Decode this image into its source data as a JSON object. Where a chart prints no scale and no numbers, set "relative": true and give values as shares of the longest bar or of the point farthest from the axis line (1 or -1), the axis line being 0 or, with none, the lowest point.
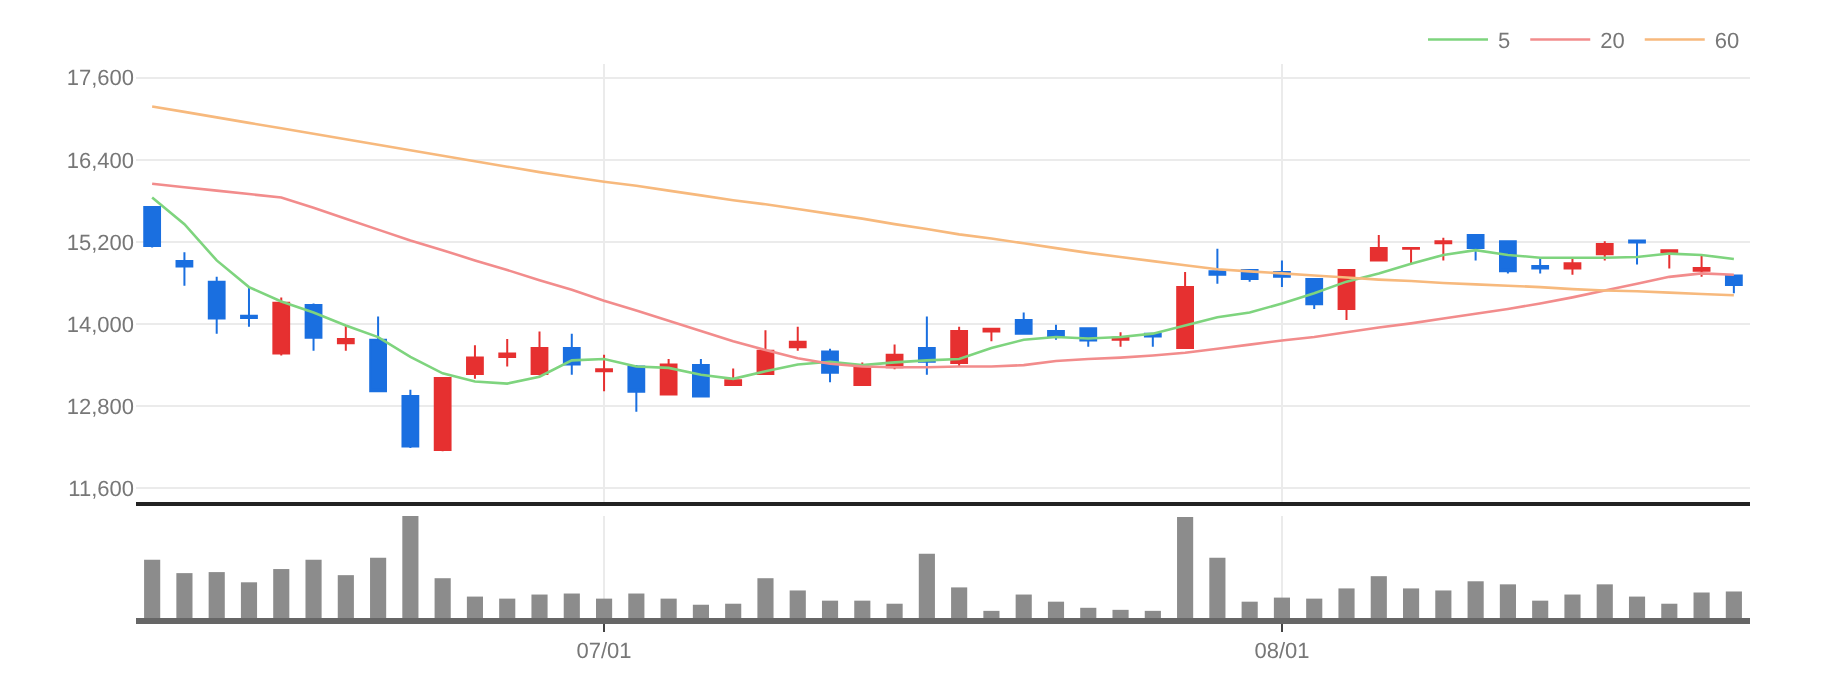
{
  "chart_data": [
    {
      "type": "candlestick",
      "categories": [
        null,
        null,
        null,
        null,
        null,
        null,
        null,
        null,
        null,
        null,
        null,
        null,
        null,
        null,
        null,
        null,
        null,
        null,
        null,
        null,
        null,
        null,
        null,
        null,
        null,
        null,
        null,
        null,
        null,
        null,
        null,
        null,
        null,
        null,
        null,
        null,
        null,
        null,
        null,
        null,
        null,
        null,
        null,
        null,
        null,
        null,
        null,
        null,
        null,
        null
      ],
      "ohlc": [
        [
          15710,
          15710,
          15120,
          15140
        ],
        [
          14920,
          15050,
          14560,
          14840
        ],
        [
          14620,
          14690,
          13860,
          14080
        ],
        [
          14120,
          14540,
          13960,
          14090
        ],
        [
          13570,
          14390,
          13540,
          14310
        ],
        [
          14280,
          14300,
          13610,
          13800
        ],
        [
          13720,
          13980,
          13610,
          13780
        ],
        [
          13770,
          14110,
          13010,
          13020
        ],
        [
          12950,
          13040,
          12190,
          12210
        ],
        [
          12160,
          13210,
          12140,
          13210
        ],
        [
          13270,
          13690,
          13200,
          13510
        ],
        [
          13520,
          13780,
          13380,
          13570
        ],
        [
          13270,
          13890,
          13250,
          13650
        ],
        [
          13650,
          13860,
          13260,
          13410
        ],
        [
          13310,
          13550,
          13020,
          13340
        ],
        [
          13380,
          13400,
          12720,
          13010
        ],
        [
          12970,
          13490,
          12970,
          13410
        ],
        [
          13400,
          13490,
          12940,
          12940
        ],
        [
          13110,
          13350,
          13110,
          13180
        ],
        [
          13270,
          13910,
          13270,
          13610
        ],
        [
          13660,
          13960,
          13610,
          13740
        ],
        [
          13600,
          13640,
          13150,
          13290
        ],
        [
          13110,
          13440,
          13110,
          13360
        ],
        [
          13370,
          13700,
          13340,
          13550
        ],
        [
          13650,
          14110,
          13260,
          13450
        ],
        [
          13430,
          13960,
          13380,
          13900
        ],
        [
          13890,
          13930,
          13750,
          13930
        ],
        [
          14060,
          14170,
          13860,
          13860
        ],
        [
          13900,
          13990,
          13770,
          13820
        ],
        [
          13940,
          13940,
          13670,
          13760
        ],
        [
          13770,
          13880,
          13670,
          13800
        ],
        [
          13860,
          13860,
          13670,
          13820
        ],
        [
          13650,
          14760,
          13650,
          14540
        ],
        [
          14770,
          15100,
          14590,
          14720
        ],
        [
          14790,
          14790,
          14620,
          14660
        ],
        [
          14760,
          14930,
          14540,
          14690
        ],
        [
          14660,
          14660,
          14220,
          14290
        ],
        [
          14220,
          14790,
          14060,
          14790
        ],
        [
          14930,
          15300,
          14930,
          15110
        ],
        [
          15100,
          15110,
          14870,
          15110
        ],
        [
          15180,
          15260,
          14930,
          15210
        ],
        [
          15300,
          15300,
          14930,
          15110
        ],
        [
          15210,
          15210,
          14740,
          14770
        ],
        [
          14850,
          14970,
          14740,
          14810
        ],
        [
          14810,
          14970,
          14720,
          14890
        ],
        [
          15020,
          15210,
          14930,
          15170
        ],
        [
          15220,
          15220,
          14870,
          15190
        ],
        [
          15050,
          15080,
          14810,
          15080
        ],
        [
          14780,
          15000,
          14690,
          14820
        ],
        [
          14710,
          14710,
          14450,
          14570
        ]
      ],
      "colors": [
        "#1a6fe0",
        "#1a6fe0",
        "#1a6fe0",
        "#1a6fe0",
        "#e63030",
        "#1a6fe0",
        "#e63030",
        "#1a6fe0",
        "#1a6fe0",
        "#e63030",
        "#e63030",
        "#e63030",
        "#e63030",
        "#1a6fe0",
        "#e63030",
        "#1a6fe0",
        "#e63030",
        "#1a6fe0",
        "#e63030",
        "#e63030",
        "#e63030",
        "#1a6fe0",
        "#e63030",
        "#e63030",
        "#1a6fe0",
        "#e63030",
        "#e63030",
        "#1a6fe0",
        "#1a6fe0",
        "#1a6fe0",
        "#e63030",
        "#1a6fe0",
        "#e63030",
        "#1a6fe0",
        "#1a6fe0",
        "#1a6fe0",
        "#1a6fe0",
        "#e63030",
        "#e63030",
        "#e63030",
        "#e63030",
        "#1a6fe0",
        "#1a6fe0",
        "#1a6fe0",
        "#e63030",
        "#e63030",
        "#1a6fe0",
        "#e63030",
        "#e63030",
        "#1a6fe0"
      ],
      "series": [
        {
          "type": "line",
          "name": "5",
          "color": "#7ed47e",
          "values": [
            15850,
            15460,
            14930,
            14540,
            14330,
            14170,
            13980,
            13810,
            13520,
            13280,
            13160,
            13130,
            13230,
            13470,
            13490,
            13380,
            13360,
            13260,
            13200,
            13310,
            13410,
            13450,
            13400,
            13440,
            13470,
            13490,
            13650,
            13770,
            13810,
            13790,
            13810,
            13860,
            13980,
            14100,
            14170,
            14300,
            14450,
            14620,
            14740,
            14880,
            15010,
            15080,
            15010,
            14970,
            14970,
            14970,
            14980,
            15030,
            15010,
            14950
          ]
        },
        {
          "type": "line",
          "name": "20",
          "color": "#f28c8c",
          "values": [
            16050,
            16000,
            15950,
            15900,
            15850,
            15700,
            15540,
            15380,
            15220,
            15080,
            14930,
            14790,
            14640,
            14500,
            14340,
            14200,
            14050,
            13900,
            13750,
            13620,
            13500,
            13420,
            13380,
            13370,
            13370,
            13380,
            13380,
            13400,
            13460,
            13490,
            13510,
            13540,
            13580,
            13640,
            13700,
            13760,
            13810,
            13880,
            13950,
            14010,
            14080,
            14150,
            14220,
            14300,
            14390,
            14490,
            14590,
            14690,
            14740,
            14720
          ]
        },
        {
          "type": "line",
          "name": "60",
          "color": "#f7b97d",
          "values": [
            17180,
            17100,
            17020,
            16940,
            16860,
            16780,
            16700,
            16620,
            16540,
            16460,
            16380,
            16300,
            16220,
            16150,
            16080,
            16020,
            15950,
            15880,
            15810,
            15750,
            15680,
            15610,
            15540,
            15460,
            15390,
            15310,
            15250,
            15180,
            15110,
            15040,
            14980,
            14920,
            14860,
            14800,
            14770,
            14740,
            14710,
            14680,
            14650,
            14630,
            14600,
            14580,
            14560,
            14540,
            14510,
            14490,
            14480,
            14460,
            14440,
            14420
          ]
        }
      ],
      "ylim": [
        11400,
        17800
      ],
      "yticks": [
        {
          "value": 11600,
          "label": "11,600"
        },
        {
          "value": 12800,
          "label": "12,800"
        },
        {
          "value": 14000,
          "label": "14,000"
        },
        {
          "value": 15200,
          "label": "15,200"
        },
        {
          "value": 16400,
          "label": "16,400"
        },
        {
          "value": 17600,
          "label": "17,600"
        }
      ],
      "grid": true,
      "legend": "top right",
      "tick_labels": "y"
    },
    {
      "type": "bar",
      "relative": true,
      "color": "#8c8c8c",
      "categories": [
        null,
        null,
        null,
        null,
        null,
        null,
        null,
        null,
        null,
        null,
        null,
        null,
        null,
        null,
        "07/01",
        null,
        null,
        null,
        null,
        null,
        null,
        null,
        null,
        null,
        null,
        null,
        null,
        null,
        null,
        null,
        null,
        null,
        null,
        null,
        null,
        "08/01",
        null,
        null,
        null,
        null,
        null,
        null,
        null,
        null,
        null,
        null,
        null,
        null,
        null,
        null
      ],
      "values": [
        0.57,
        0.44,
        0.45,
        0.35,
        0.48,
        0.57,
        0.42,
        0.59,
        1,
        0.39,
        0.21,
        0.19,
        0.23,
        0.24,
        0.19,
        0.24,
        0.19,
        0.13,
        0.14,
        0.39,
        0.27,
        0.17,
        0.17,
        0.14,
        0.63,
        0.3,
        0.07,
        0.23,
        0.16,
        0.1,
        0.08,
        0.07,
        0.99,
        0.59,
        0.16,
        0.2,
        0.19,
        0.29,
        0.41,
        0.29,
        0.27,
        0.36,
        0.33,
        0.17,
        0.23,
        0.33,
        0.21,
        0.14,
        0.25,
        0.26
      ],
      "grid": "x",
      "tick_labels": "x"
    }
  ]
}
